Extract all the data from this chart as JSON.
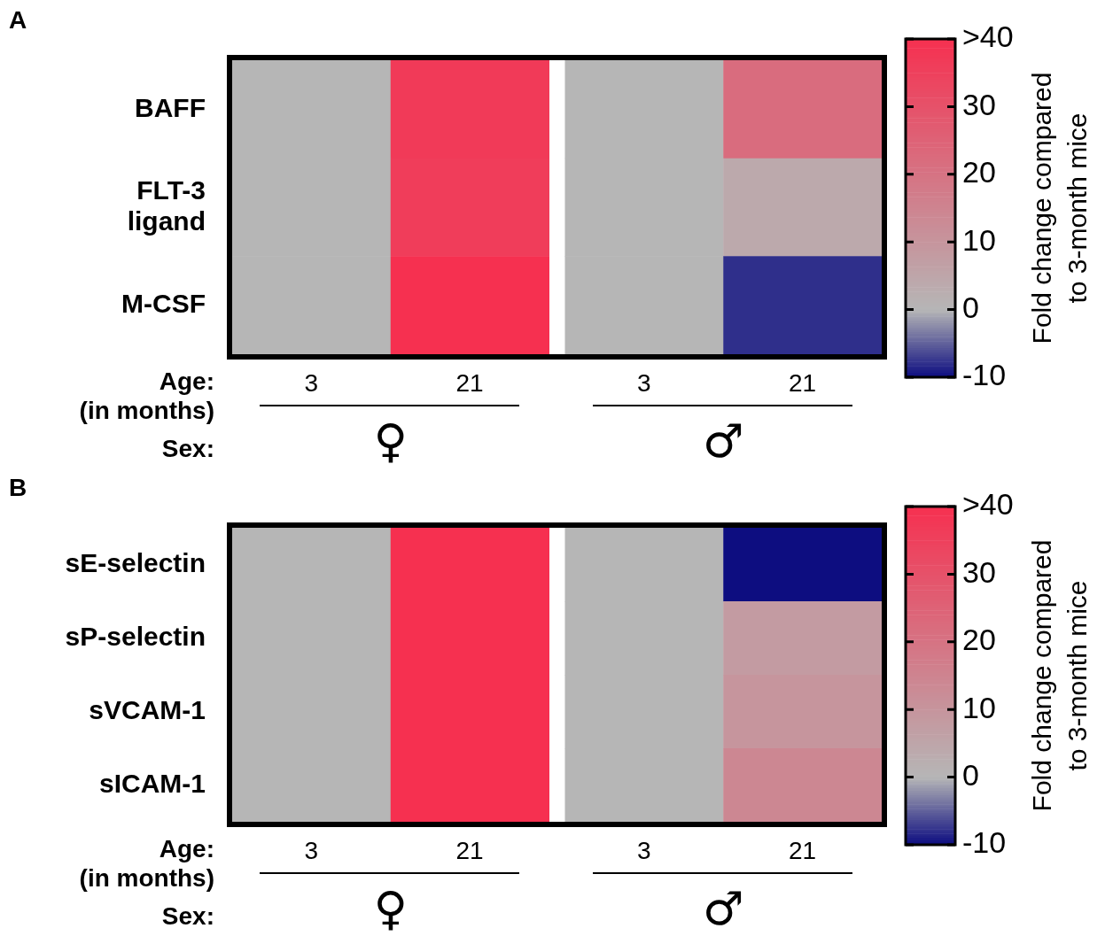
{
  "chart_data": [
    {
      "type": "heatmap",
      "title": "A",
      "categories": [
        "3",
        "21",
        "3",
        "21"
      ],
      "y_categories": [
        "BAFF",
        "FLT-3\nligand",
        "M-CSF"
      ],
      "cells": [
        [
          0,
          37,
          0,
          22
        ],
        [
          0,
          36,
          0,
          4
        ],
        [
          0,
          40,
          0,
          -8
        ]
      ],
      "xlabel": "Age:\n(in months)",
      "annotations": [
        "Sex:",
        "♀",
        "♂"
      ],
      "clabel": "Fold change compared\nto 3-month mice",
      "clim": [
        -10,
        40
      ],
      "cticks": [
        -10,
        0,
        10,
        20,
        30,
        {
          "value": 40,
          "label": ">40"
        }
      ]
    },
    {
      "type": "heatmap",
      "title": "B",
      "categories": [
        "3",
        "21",
        "3",
        "21"
      ],
      "y_categories": [
        "sE-selectin",
        "sP-selectin",
        "sVCAM-1",
        "sICAM-1"
      ],
      "cells": [
        [
          0,
          40,
          0,
          -10
        ],
        [
          0,
          40,
          0,
          8
        ],
        [
          0,
          40,
          0,
          10
        ],
        [
          0,
          40,
          0,
          14
        ]
      ],
      "xlabel": "Age:\n(in months)",
      "annotations": [
        "Sex:",
        "♀",
        "♂"
      ],
      "clabel": "Fold change compared\nto 3-month mice",
      "clim": [
        -10,
        40
      ],
      "cticks": [
        -10,
        0,
        10,
        20,
        30,
        {
          "value": 40,
          "label": ">40"
        }
      ]
    }
  ]
}
